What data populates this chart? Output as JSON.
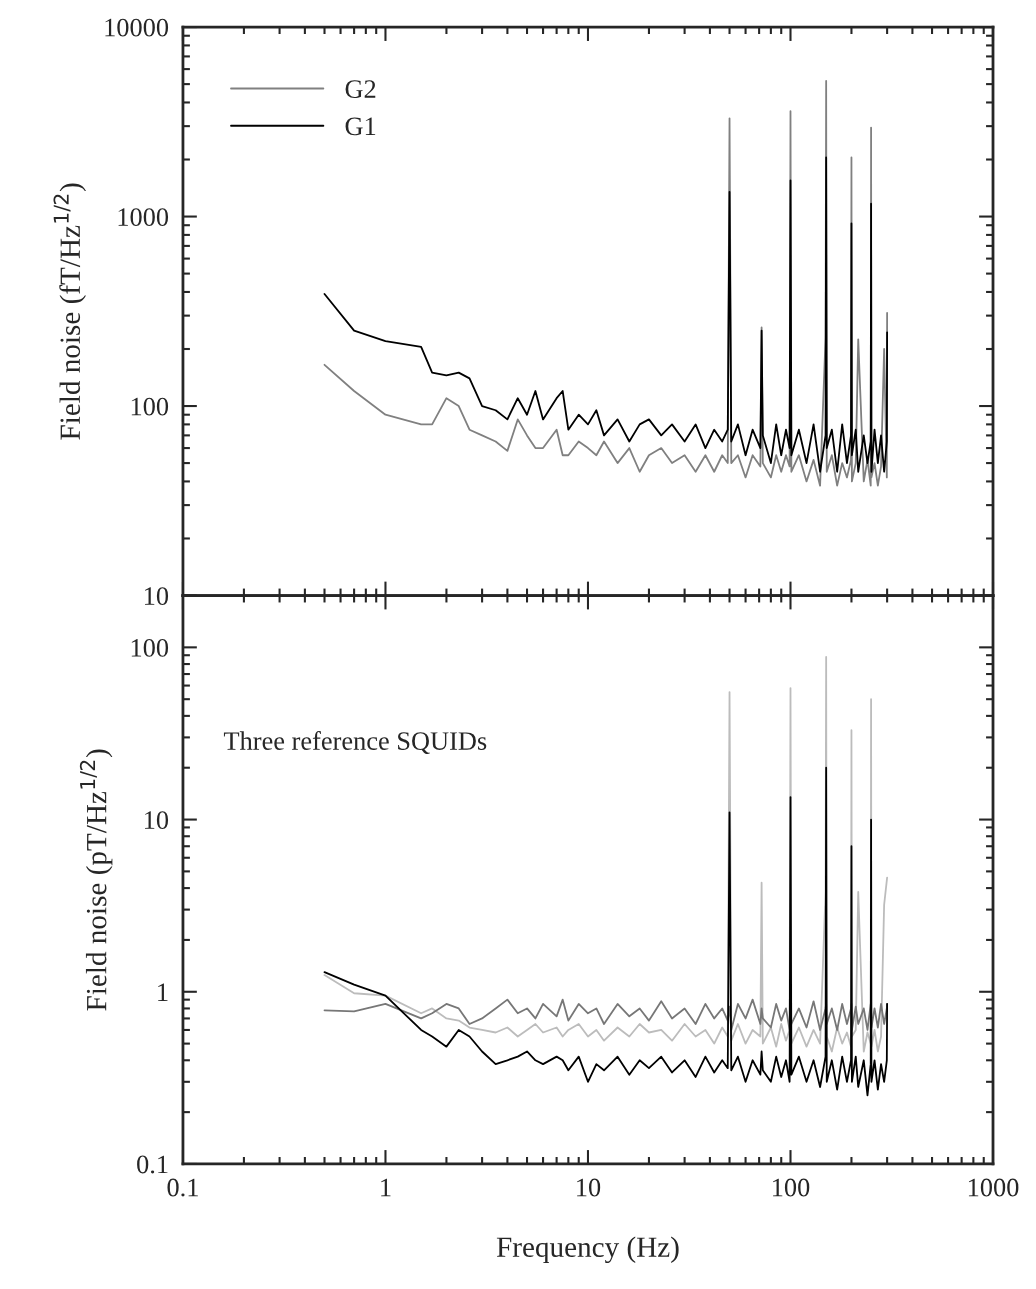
{
  "chart_data": [
    {
      "type": "line",
      "ylabel": "Field noise (fT/Hz$^{1/2}$)",
      "log": "xy",
      "xlim": [
        0.1,
        1000
      ],
      "xticks": [
        0.1,
        1,
        10,
        100,
        1000
      ],
      "ylim": [
        10,
        10000
      ],
      "yticks": [
        10,
        100,
        1000,
        10000
      ],
      "tick_labels": "y",
      "legend": "top left",
      "grid": false,
      "marker": "none",
      "line_style": "solid",
      "x": [
        0.5,
        0.7,
        1,
        1.5,
        1.7,
        2,
        2.3,
        2.6,
        3,
        3.5,
        4,
        4.5,
        5,
        5.5,
        6,
        7,
        7.5,
        8,
        9,
        10,
        11,
        12,
        14,
        16,
        18,
        20,
        23,
        26,
        30,
        34,
        38,
        42,
        46,
        49,
        50,
        51,
        55,
        60,
        65,
        71,
        72,
        73,
        80,
        85,
        90,
        95,
        99,
        100,
        101,
        110,
        120,
        130,
        140,
        149,
        150,
        151,
        160,
        170,
        180,
        190,
        199,
        200,
        201,
        210,
        216,
        230,
        240,
        249,
        250,
        251,
        260,
        270,
        280,
        290,
        299,
        300
      ],
      "series": [
        {
          "name": "G2",
          "color": "#808080",
          "values": [
            165,
            120,
            90,
            80,
            80,
            110,
            100,
            75,
            70,
            65,
            58,
            85,
            70,
            60,
            60,
            75,
            55,
            55,
            65,
            60,
            55,
            65,
            50,
            60,
            45,
            55,
            60,
            50,
            55,
            45,
            55,
            45,
            55,
            50,
            3300,
            50,
            55,
            42,
            55,
            48,
            260,
            50,
            42,
            55,
            45,
            55,
            48,
            3600,
            45,
            55,
            40,
            52,
            38,
            230,
            5200,
            45,
            55,
            38,
            50,
            42,
            52,
            2050,
            40,
            50,
            225,
            40,
            52,
            38,
            2950,
            42,
            50,
            38,
            48,
            200,
            42,
            310
          ]
        },
        {
          "name": "G1",
          "color": "#000000",
          "values": [
            390,
            250,
            220,
            205,
            150,
            145,
            150,
            140,
            100,
            95,
            85,
            110,
            90,
            120,
            85,
            110,
            120,
            75,
            90,
            80,
            95,
            70,
            85,
            65,
            80,
            85,
            70,
            80,
            65,
            80,
            60,
            75,
            65,
            75,
            1350,
            65,
            80,
            55,
            75,
            60,
            250,
            70,
            50,
            80,
            55,
            75,
            60,
            1550,
            55,
            75,
            50,
            80,
            45,
            70,
            2050,
            60,
            75,
            45,
            80,
            50,
            70,
            920,
            55,
            75,
            45,
            70,
            50,
            65,
            1170,
            45,
            75,
            50,
            70,
            45,
            65,
            245
          ]
        }
      ]
    },
    {
      "type": "line",
      "ylabel": "Field noise (pT/Hz$^{1/2}$)",
      "xlabel": "Frequency (Hz)",
      "log": "xy",
      "xlim": [
        0.1,
        1000
      ],
      "xticks": [
        0.1,
        1,
        10,
        100,
        1000
      ],
      "ylim": [
        0.1,
        200
      ],
      "yticks": [
        0.1,
        1,
        10,
        100
      ],
      "grid": false,
      "legend": false,
      "marker": "none",
      "line_style": "solid",
      "annotations": [
        "Three reference SQUIDs"
      ],
      "x": [
        0.5,
        0.7,
        1,
        1.5,
        1.7,
        2,
        2.3,
        2.6,
        3,
        3.5,
        4,
        4.5,
        5,
        5.5,
        6,
        7,
        7.5,
        8,
        9,
        10,
        11,
        12,
        14,
        16,
        18,
        20,
        23,
        26,
        30,
        34,
        38,
        42,
        46,
        49,
        50,
        51,
        55,
        60,
        65,
        71,
        72,
        73,
        80,
        85,
        90,
        95,
        99,
        100,
        101,
        110,
        120,
        130,
        140,
        149,
        150,
        151,
        160,
        170,
        180,
        190,
        199,
        200,
        201,
        210,
        216,
        230,
        240,
        249,
        250,
        251,
        260,
        270,
        280,
        290,
        299,
        300
      ],
      "series": [
        {
          "color": "#bcbcbc",
          "values": [
            1.25,
            0.98,
            0.95,
            0.75,
            0.8,
            0.7,
            0.68,
            0.62,
            0.6,
            0.58,
            0.62,
            0.55,
            0.6,
            0.65,
            0.58,
            0.62,
            0.55,
            0.6,
            0.65,
            0.55,
            0.6,
            0.52,
            0.62,
            0.55,
            0.65,
            0.58,
            0.6,
            0.52,
            0.65,
            0.55,
            0.6,
            0.5,
            0.62,
            0.55,
            55,
            0.52,
            0.65,
            0.5,
            0.6,
            0.55,
            4.3,
            0.5,
            0.62,
            0.48,
            0.65,
            0.52,
            0.6,
            58,
            0.5,
            0.62,
            0.48,
            0.6,
            0.5,
            3.8,
            88,
            0.55,
            0.45,
            0.62,
            0.5,
            0.58,
            0.48,
            33,
            0.55,
            0.6,
            3.8,
            0.45,
            0.58,
            0.5,
            50,
            0.48,
            0.6,
            0.45,
            0.55,
            3.2,
            null,
            4.6
          ]
        },
        {
          "color": "#777777",
          "values": [
            0.78,
            0.77,
            0.85,
            0.7,
            0.75,
            0.85,
            0.8,
            0.65,
            0.7,
            0.8,
            0.9,
            0.75,
            0.8,
            0.7,
            0.85,
            0.72,
            0.9,
            0.68,
            0.85,
            0.75,
            0.8,
            0.65,
            0.85,
            0.72,
            0.8,
            0.68,
            0.88,
            0.7,
            0.8,
            0.65,
            0.85,
            0.7,
            0.8,
            0.68,
            0.82,
            0.6,
            0.85,
            0.7,
            0.9,
            0.65,
            0.8,
            0.7,
            0.62,
            0.85,
            0.68,
            0.8,
            0.6,
            null,
            0.65,
            0.8,
            0.62,
            0.88,
            0.6,
            0.8,
            0.85,
            0.65,
            0.8,
            0.6,
            0.85,
            0.65,
            0.8,
            0.85,
            0.6,
            0.82,
            0.65,
            0.8,
            0.6,
            0.85,
            0.82,
            0.62,
            0.8,
            0.62,
            0.85,
            0.65,
            0.8,
            0.85
          ]
        },
        {
          "color": "#000000",
          "values": [
            1.3,
            1.1,
            0.95,
            0.6,
            0.55,
            0.48,
            0.6,
            0.55,
            0.45,
            0.38,
            0.4,
            0.42,
            0.45,
            0.4,
            0.38,
            0.42,
            0.4,
            0.35,
            0.42,
            0.3,
            0.38,
            0.35,
            0.42,
            0.33,
            0.4,
            0.36,
            0.42,
            0.34,
            0.4,
            0.32,
            0.42,
            0.34,
            0.4,
            0.36,
            11,
            0.35,
            0.42,
            0.3,
            0.4,
            0.33,
            0.45,
            0.35,
            0.3,
            0.42,
            0.32,
            0.4,
            0.3,
            13.5,
            0.33,
            0.42,
            0.3,
            0.4,
            0.28,
            0.42,
            20,
            0.3,
            0.4,
            0.27,
            0.42,
            0.3,
            0.4,
            7,
            0.3,
            0.42,
            0.28,
            0.4,
            0.25,
            0.38,
            10,
            0.3,
            0.4,
            0.27,
            0.38,
            0.3,
            0.4,
            0.85
          ]
        }
      ]
    }
  ]
}
